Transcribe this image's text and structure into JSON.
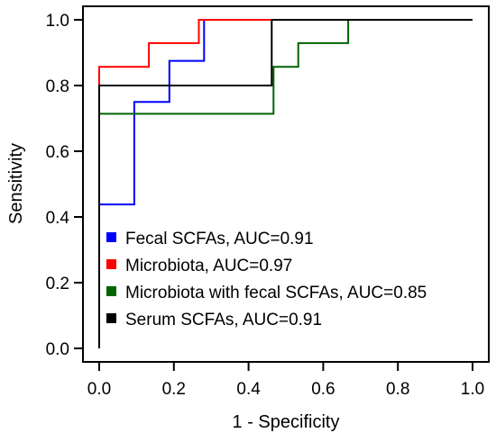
{
  "chart_data": {
    "type": "line",
    "title": "",
    "xlabel": "1 - Specificity",
    "ylabel": "Sensitivity",
    "xlim": [
      0,
      1
    ],
    "ylim": [
      0,
      1
    ],
    "x_ticks": [
      "0.0",
      "0.2",
      "0.4",
      "0.6",
      "0.8",
      "1.0"
    ],
    "y_ticks": [
      "0.0",
      "0.2",
      "0.4",
      "0.6",
      "0.8",
      "1.0"
    ],
    "grid": false,
    "legend_position": "bottom-right",
    "line_style": "step",
    "series": [
      {
        "name": "Fecal SCFAs, AUC=0.91",
        "color": "#0000ff",
        "x": [
          0,
          0,
          0.094,
          0.094,
          0.188,
          0.188,
          0.281,
          0.281,
          1
        ],
        "y": [
          0,
          0.438,
          0.438,
          0.75,
          0.75,
          0.875,
          0.875,
          1,
          1
        ]
      },
      {
        "name": "Microbiota, AUC=0.97",
        "color": "#ff0000",
        "x": [
          0,
          0,
          0.067,
          0.133,
          0.133,
          0.267,
          0.267,
          1
        ],
        "y": [
          0,
          0.857,
          0.857,
          0.857,
          0.929,
          0.929,
          1,
          1
        ]
      },
      {
        "name": "Microbiota with fecal SCFAs, AUC=0.85",
        "color": "#006400",
        "x": [
          0,
          0,
          0.467,
          0.467,
          0.533,
          0.533,
          0.667,
          0.667,
          1
        ],
        "y": [
          0,
          0.714,
          0.714,
          0.857,
          0.857,
          0.929,
          0.929,
          1,
          1
        ]
      },
      {
        "name": "Serum SCFAs, AUC=0.91",
        "color": "#000000",
        "x": [
          0,
          0,
          0.462,
          0.462,
          1
        ],
        "y": [
          0,
          0.8,
          0.8,
          1,
          1
        ]
      }
    ]
  }
}
